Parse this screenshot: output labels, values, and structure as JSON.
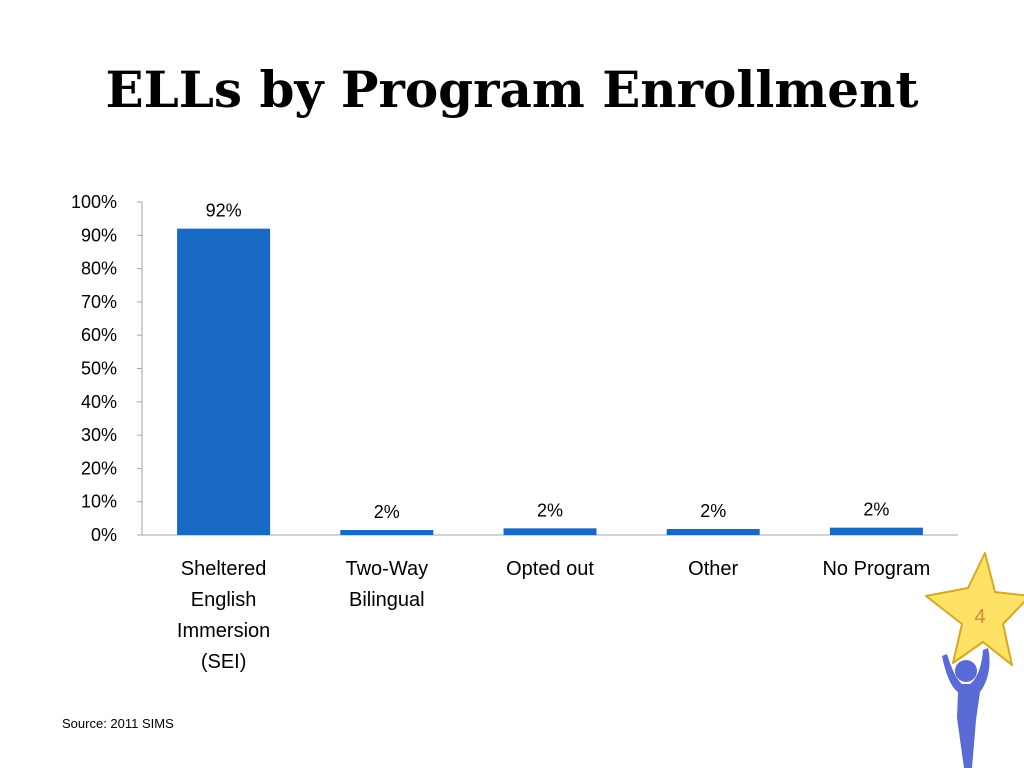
{
  "slide": {
    "title": "ELLs by Program Enrollment",
    "source": "Source: 2011  SIMS",
    "page_number": "4"
  },
  "colors": {
    "bar": "#1769c4",
    "axis": "#a6a6a6",
    "star_fill": "#fde265",
    "star_stroke": "#d9a820",
    "figure": "#5b6bd6"
  },
  "icons": {
    "mascot": "person-holding-star-icon"
  },
  "chart_data": {
    "type": "bar",
    "title": "",
    "xlabel": "",
    "ylabel": "",
    "categories": [
      [
        "Sheltered",
        "English",
        "Immersion",
        "(SEI)"
      ],
      [
        "Two-Way",
        "Bilingual"
      ],
      [
        "Opted out"
      ],
      [
        "Other"
      ],
      [
        "No Program"
      ]
    ],
    "values": [
      92,
      1.5,
      2,
      1.8,
      2.2
    ],
    "data_labels": [
      "92%",
      "2%",
      "2%",
      "2%",
      "2%"
    ],
    "ylim": [
      0,
      100
    ],
    "yticks": [
      0,
      10,
      20,
      30,
      40,
      50,
      60,
      70,
      80,
      90,
      100
    ],
    "ytick_labels": [
      "0%",
      "10%",
      "20%",
      "30%",
      "40%",
      "50%",
      "60%",
      "70%",
      "80%",
      "90%",
      "100%"
    ],
    "grid": false,
    "legend": "none"
  }
}
